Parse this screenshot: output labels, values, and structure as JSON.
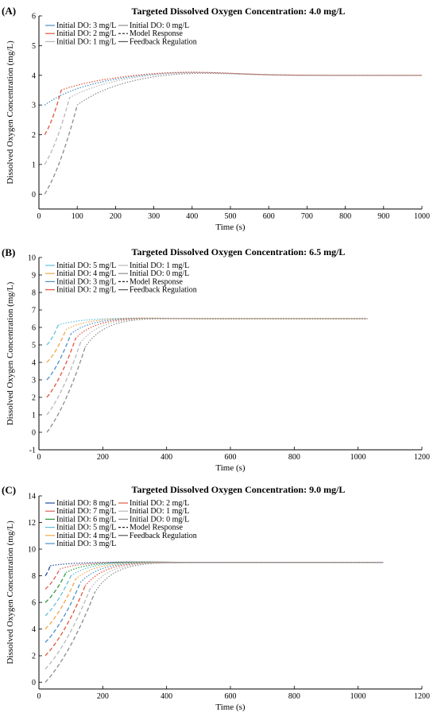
{
  "chart_data": [
    {
      "type": "line",
      "panel": "(A)",
      "title": "Targeted Dissolved Oxygen Concentration: 4.0 mg/L",
      "xlabel": "Time (s)",
      "ylabel": "Dissolved Oxygen Concentration (mg/L)",
      "xlim": [
        0,
        1000
      ],
      "ylim": [
        -0.5,
        6
      ],
      "xticks": [
        0,
        100,
        200,
        300,
        400,
        500,
        600,
        700,
        800,
        900,
        1000
      ],
      "yticks": [
        0,
        1,
        2,
        3,
        4,
        5,
        6
      ],
      "target": 4.0,
      "response_end": 1000,
      "legend": [
        {
          "label": "Initial DO: 3 mg/L",
          "style": "solid",
          "color": "#4a90c8"
        },
        {
          "label": "Initial DO: 0 mg/L",
          "style": "solid",
          "color": "#8c8c8c"
        },
        {
          "label": "Initial DO: 2 mg/L",
          "style": "solid",
          "color": "#e0553a"
        },
        {
          "label": "Model Response",
          "style": "dashed",
          "color": "#222222"
        },
        {
          "label": "Initial DO: 1 mg/L",
          "style": "solid",
          "color": "#b8b8b8"
        },
        {
          "label": "Feedback Regulation",
          "style": "solid",
          "color": "#555555"
        }
      ],
      "series": [
        {
          "initial": 3,
          "color": "#4a90c8",
          "t_start": 15,
          "t_switch": 15
        },
        {
          "initial": 2,
          "color": "#e0553a",
          "t_start": 15,
          "t_switch": 58
        },
        {
          "initial": 1,
          "color": "#b8b8b8",
          "t_start": 15,
          "t_switch": 80
        },
        {
          "initial": 0,
          "color": "#8c8c8c",
          "t_start": 15,
          "t_switch": 100
        }
      ]
    },
    {
      "type": "line",
      "panel": "(B)",
      "title": "Targeted Dissolved Oxygen Concentration: 6.5 mg/L",
      "xlabel": "Time (s)",
      "ylabel": "Dissolved Oxygen Concentration (mg/L)",
      "xlim": [
        0,
        1200
      ],
      "ylim": [
        -1,
        10
      ],
      "xticks": [
        0,
        200,
        400,
        600,
        800,
        1000,
        1200
      ],
      "yticks": [
        -1,
        0,
        1,
        2,
        3,
        4,
        5,
        6,
        7,
        8,
        9,
        10
      ],
      "target": 6.5,
      "response_end": 1030,
      "legend": [
        {
          "label": "Initial DO: 5 mg/L",
          "style": "solid",
          "color": "#62c0dc"
        },
        {
          "label": "Initial DO: 1 mg/L",
          "style": "solid",
          "color": "#b8b8b8"
        },
        {
          "label": "Initial DO: 4 mg/L",
          "style": "solid",
          "color": "#f0a848"
        },
        {
          "label": "Initial DO: 0 mg/L",
          "style": "solid",
          "color": "#8c8c8c"
        },
        {
          "label": "Initial DO: 3 mg/L",
          "style": "solid",
          "color": "#4a90c8"
        },
        {
          "label": "Model Response",
          "style": "dashed",
          "color": "#222222"
        },
        {
          "label": "Initial DO: 2 mg/L",
          "style": "solid",
          "color": "#e0553a"
        },
        {
          "label": "Feedback Regulation",
          "style": "solid",
          "color": "#555555"
        }
      ],
      "series": [
        {
          "initial": 5,
          "color": "#62c0dc",
          "t_start": 25,
          "t_switch": 60
        },
        {
          "initial": 4,
          "color": "#f0a848",
          "t_start": 25,
          "t_switch": 85
        },
        {
          "initial": 3,
          "color": "#4a90c8",
          "t_start": 25,
          "t_switch": 100
        },
        {
          "initial": 2,
          "color": "#e0553a",
          "t_start": 25,
          "t_switch": 115
        },
        {
          "initial": 1,
          "color": "#b8b8b8",
          "t_start": 25,
          "t_switch": 130
        },
        {
          "initial": 0,
          "color": "#8c8c8c",
          "t_start": 25,
          "t_switch": 145
        }
      ]
    },
    {
      "type": "line",
      "panel": "(C)",
      "title": "Targeted Dissolved Oxygen Concentration: 9.0 mg/L",
      "xlabel": "Time (s)",
      "ylabel": "Dissolved Oxygen Concentration (mg/L)",
      "xlim": [
        0,
        1200
      ],
      "ylim": [
        -0.5,
        14
      ],
      "xticks": [
        0,
        200,
        400,
        600,
        800,
        1000,
        1200
      ],
      "yticks": [
        0,
        2,
        4,
        6,
        8,
        10,
        12,
        14
      ],
      "target": 9.0,
      "response_end": 1080,
      "legend": [
        {
          "label": "Initial DO: 8 mg/L",
          "style": "solid",
          "color": "#1f4e9c"
        },
        {
          "label": "Initial DO: 2 mg/L",
          "style": "solid",
          "color": "#e0553a"
        },
        {
          "label": "Initial DO: 7 mg/L",
          "style": "solid",
          "color": "#d8605c"
        },
        {
          "label": "Initial DO: 1 mg/L",
          "style": "solid",
          "color": "#b8b8b8"
        },
        {
          "label": "Initial DO: 6 mg/L",
          "style": "solid",
          "color": "#2e9a3a"
        },
        {
          "label": "Initial DO: 0 mg/L",
          "style": "solid",
          "color": "#8c8c8c"
        },
        {
          "label": "Initial DO: 5 mg/L",
          "style": "solid",
          "color": "#62c0dc"
        },
        {
          "label": "Model Response",
          "style": "dashed",
          "color": "#222222"
        },
        {
          "label": "Initial DO: 4 mg/L",
          "style": "solid",
          "color": "#f0a848"
        },
        {
          "label": "Feedback Regulation",
          "style": "solid",
          "color": "#555555"
        },
        {
          "label": "Initial DO: 3 mg/L",
          "style": "solid",
          "color": "#4a90c8"
        }
      ],
      "series": [
        {
          "initial": 8,
          "color": "#1f4e9c",
          "t_start": 20,
          "t_switch": 35
        },
        {
          "initial": 7,
          "color": "#d8605c",
          "t_start": 20,
          "t_switch": 65
        },
        {
          "initial": 6,
          "color": "#2e9a3a",
          "t_start": 20,
          "t_switch": 85
        },
        {
          "initial": 5,
          "color": "#62c0dc",
          "t_start": 20,
          "t_switch": 100
        },
        {
          "initial": 4,
          "color": "#f0a848",
          "t_start": 20,
          "t_switch": 115
        },
        {
          "initial": 3,
          "color": "#4a90c8",
          "t_start": 20,
          "t_switch": 130
        },
        {
          "initial": 2,
          "color": "#e0553a",
          "t_start": 20,
          "t_switch": 145
        },
        {
          "initial": 1,
          "color": "#b8b8b8",
          "t_start": 20,
          "t_switch": 160
        },
        {
          "initial": 0,
          "color": "#8c8c8c",
          "t_start": 20,
          "t_switch": 175
        }
      ]
    }
  ]
}
